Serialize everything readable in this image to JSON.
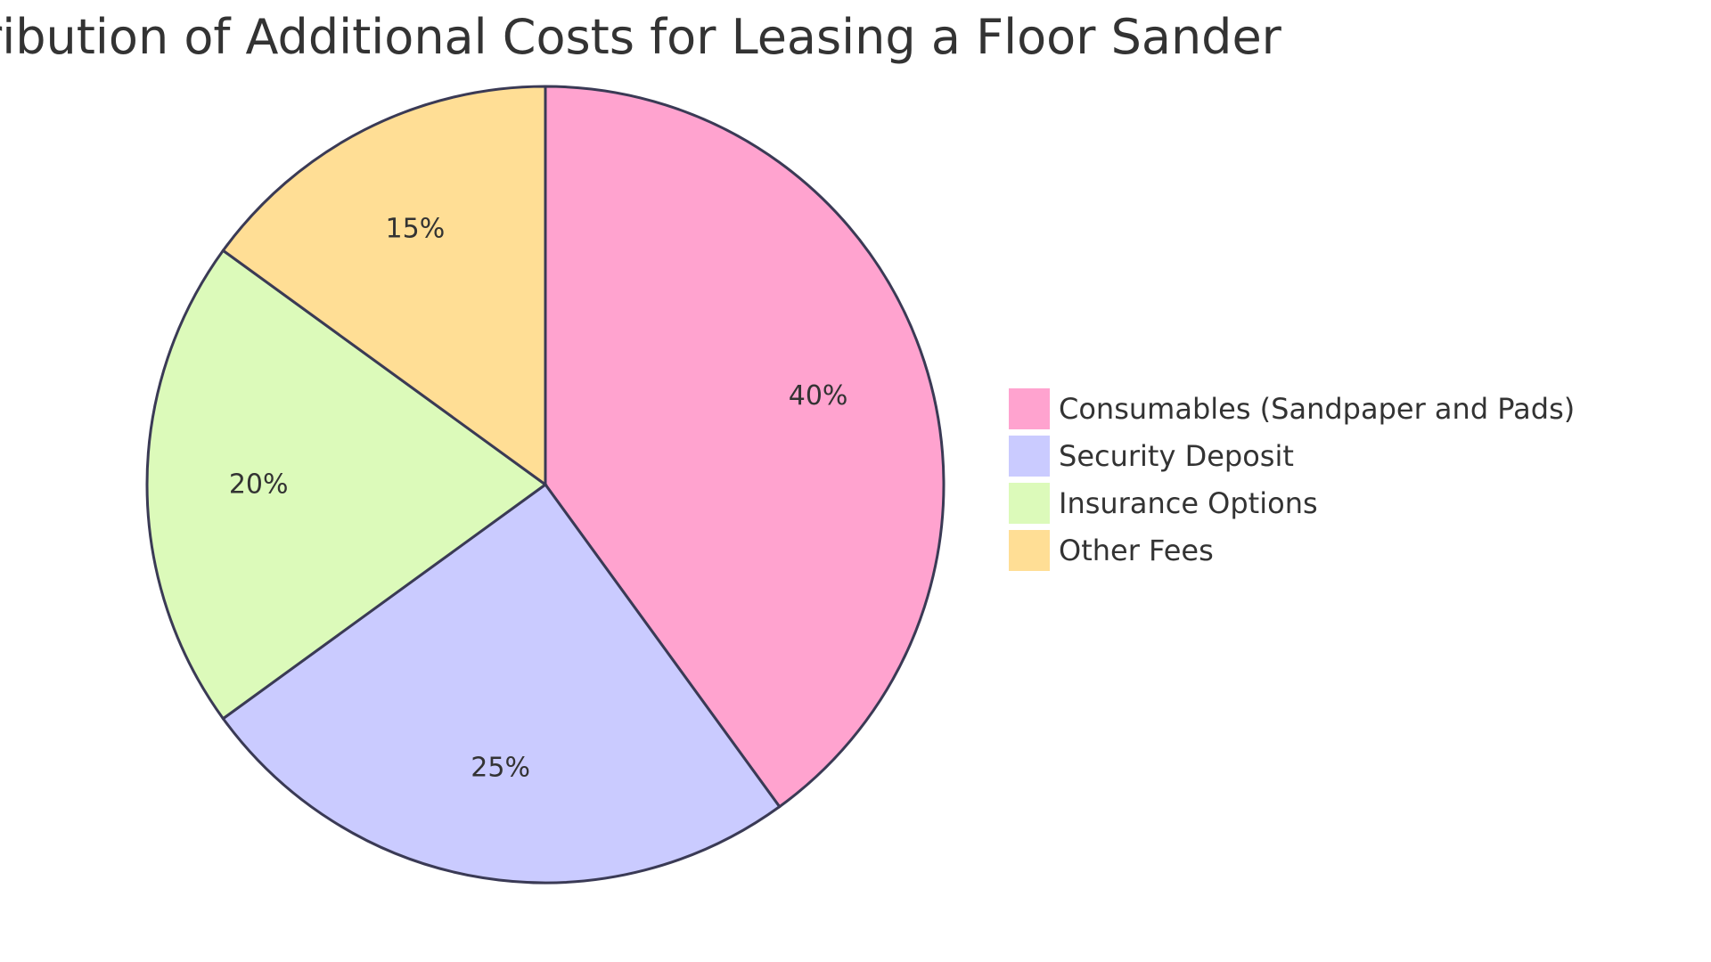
{
  "chart_data": {
    "type": "pie",
    "title": "Distribution of Additional Costs for Leasing a Floor Sander",
    "slices": [
      {
        "label": "Consumables (Sandpaper and Pads)",
        "value": 40,
        "display": "40%",
        "color": "#FFA3CF"
      },
      {
        "label": "Security Deposit",
        "value": 25,
        "display": "25%",
        "color": "#CACBFF"
      },
      {
        "label": "Insurance Options",
        "value": 20,
        "display": "20%",
        "color": "#DCFABA"
      },
      {
        "label": "Other Fees",
        "value": 15,
        "display": "15%",
        "color": "#FFDE95"
      }
    ],
    "legend_position": "right"
  }
}
